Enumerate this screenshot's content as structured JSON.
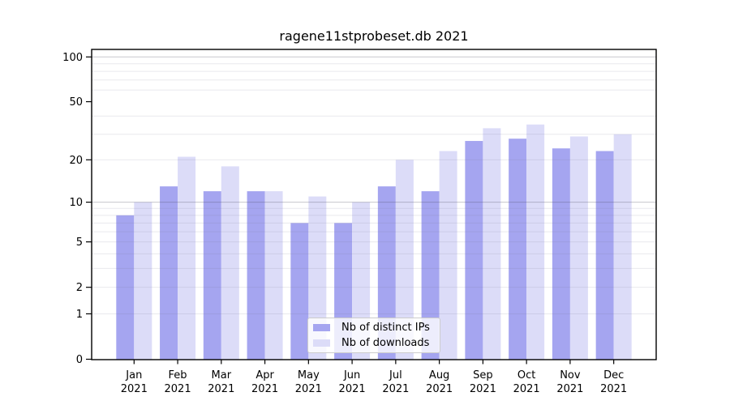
{
  "title": "ragene11stprobeset.db 2021",
  "chart_data": {
    "type": "bar",
    "title": "ragene11stprobeset.db 2021",
    "categories": [
      "Jan 2021",
      "Feb 2021",
      "Mar 2021",
      "Apr 2021",
      "May 2021",
      "Jun 2021",
      "Jul 2021",
      "Aug 2021",
      "Sep 2021",
      "Oct 2021",
      "Nov 2021",
      "Dec 2021"
    ],
    "x_tick_months": [
      "Jan",
      "Feb",
      "Mar",
      "Apr",
      "May",
      "Jun",
      "Jul",
      "Aug",
      "Sep",
      "Oct",
      "Nov",
      "Dec"
    ],
    "x_tick_year": "2021",
    "series": [
      {
        "name": "Nb of distinct IPs",
        "color": "#a5a5f0",
        "values": [
          8,
          13,
          12,
          12,
          7,
          7,
          13,
          12,
          27,
          28,
          24,
          23
        ]
      },
      {
        "name": "Nb of downloads",
        "color": "#dcdcf8",
        "values": [
          10,
          21,
          18,
          12,
          11,
          10,
          20,
          23,
          33,
          35,
          29,
          30
        ]
      }
    ],
    "xlabel": "",
    "ylabel": "",
    "yscale": "log1p",
    "ylim": [
      0,
      115
    ],
    "ytick_values": [
      0,
      1,
      2,
      5,
      10,
      20,
      50,
      100
    ],
    "minor_grid_values": [
      1,
      2,
      3,
      4,
      5,
      6,
      7,
      8,
      9,
      20,
      30,
      40,
      60,
      70,
      80,
      90
    ],
    "major_grid_values": [
      10,
      100
    ],
    "grid": true,
    "legend_position": "lower center"
  },
  "colors": {
    "background": "#ffffff",
    "axis": "#000000",
    "grid_minor": "#e9e9e9",
    "grid_major": "#c9c9c9",
    "tick_text": "#000000"
  }
}
